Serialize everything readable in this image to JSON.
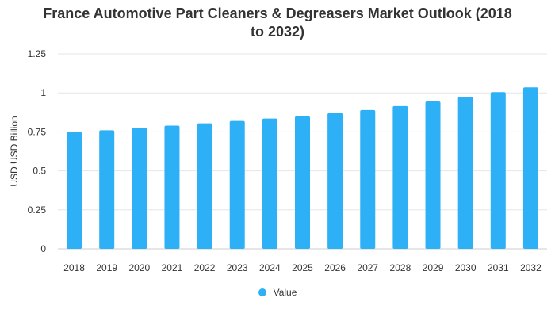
{
  "chart_data": {
    "type": "bar",
    "title": "France Automotive Part Cleaners & Degreasers Market Outlook (2018 to 2032)",
    "title_lines": [
      "France Automotive Part Cleaners & Degreasers Market Outlook (2018",
      "to 2032)"
    ],
    "xlabel": "",
    "ylabel": "USD USD Billion",
    "categories": [
      "2018",
      "2019",
      "2020",
      "2021",
      "2022",
      "2023",
      "2024",
      "2025",
      "2026",
      "2027",
      "2028",
      "2029",
      "2030",
      "2031",
      "2032"
    ],
    "series": [
      {
        "name": "Value",
        "color": "#2eb0f7",
        "values": [
          0.75,
          0.76,
          0.775,
          0.79,
          0.805,
          0.82,
          0.835,
          0.85,
          0.87,
          0.89,
          0.915,
          0.945,
          0.975,
          1.005,
          1.035
        ]
      }
    ],
    "ylim": [
      0,
      1.25
    ],
    "yticks": [
      0,
      0.25,
      0.5,
      0.75,
      1,
      1.25
    ],
    "ytick_labels": [
      "0",
      "0.25",
      "0.5",
      "0.75",
      "1",
      "1.25"
    ],
    "grid": true,
    "legend_position": "bottom"
  }
}
